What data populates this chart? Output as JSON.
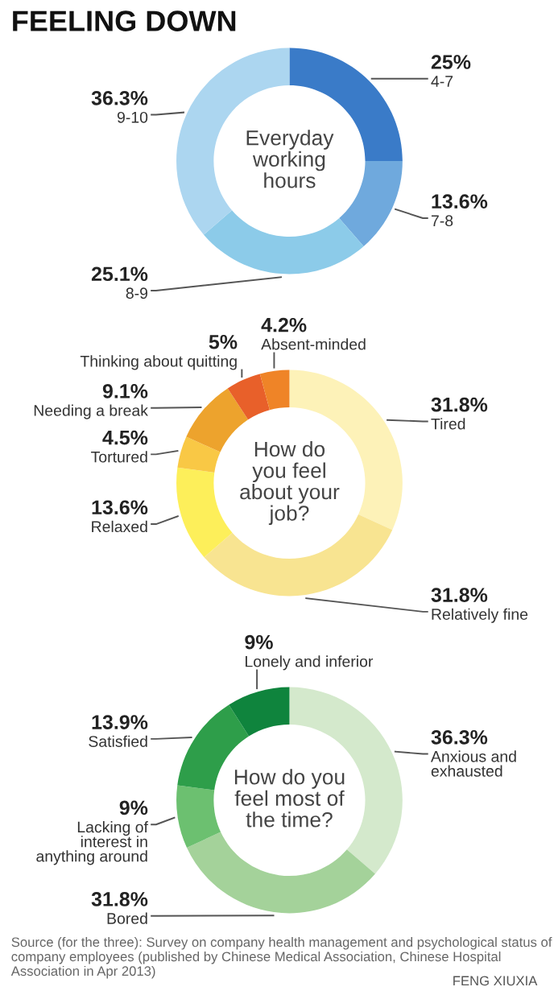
{
  "chart_data": [
    {
      "type": "donut",
      "title": "FEELING DOWN",
      "subtitle": "Everyday\nworking\nhours",
      "categories": [
        "4-7",
        "7-8",
        "8-9",
        "9-10"
      ],
      "values": [
        25,
        13.6,
        25.1,
        36.3
      ],
      "value_labels": [
        "25%",
        "13.6%",
        "25.1%",
        "36.3%"
      ],
      "colors": [
        "#3a7bc8",
        "#6fa9dd",
        "#8ccbe9",
        "#acd6f0"
      ]
    },
    {
      "type": "donut",
      "subtitle": "How do\nyou feel\nabout your\njob?",
      "categories": [
        "Tired",
        "Relatively fine",
        "Relaxed",
        "Tortured",
        "Needing a break",
        "Thinking about quitting",
        "Absent-minded"
      ],
      "values": [
        31.8,
        31.8,
        13.6,
        4.5,
        9.1,
        5,
        4.2
      ],
      "value_labels": [
        "31.8%",
        "31.8%",
        "13.6%",
        "4.5%",
        "9.1%",
        "5%",
        "4.2%"
      ],
      "colors": [
        "#fdf2b8",
        "#f8e491",
        "#fdef5a",
        "#f9c845",
        "#eda32d",
        "#e8602a",
        "#ef8427"
      ]
    },
    {
      "type": "donut",
      "subtitle": "How do you\nfeel most of\nthe time?",
      "categories": [
        "Anxious and\nexhausted",
        "Bored",
        "Lacking of\ninterest in\nanything around",
        "Satisfied",
        "Lonely and inferior"
      ],
      "values": [
        36.3,
        31.8,
        9,
        13.9,
        9
      ],
      "value_labels": [
        "36.3%",
        "31.8%",
        "9%",
        "13.9%",
        "9%"
      ],
      "colors": [
        "#d4e9cc",
        "#a4d29a",
        "#6cc070",
        "#2e9e4a",
        "#0f843d"
      ],
      "annotations": [
        "Source (for the three): Survey on company health management and psychological status of company employees (published by Chinese Medical Association, Chinese Hospital Association in Apr 2013)",
        "FENG XIUXIA"
      ]
    }
  ]
}
